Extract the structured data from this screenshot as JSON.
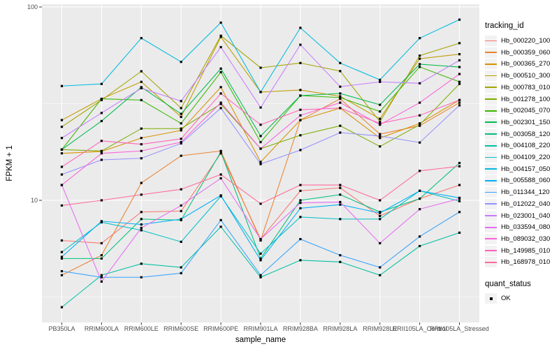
{
  "figure": {
    "legend_title": "tracking_id",
    "quant_status_title": "quant_status",
    "quant_status_item": "OK"
  },
  "chart_data": {
    "type": "line",
    "title": "",
    "xlabel": "sample_name",
    "ylabel": "FPKM + 1",
    "y_scale": "log10",
    "ylim": [
      2.3,
      102
    ],
    "y_ticks": [
      100,
      10
    ],
    "grid": true,
    "legend_position": "right",
    "marker": "black-square",
    "marker_legend": {
      "title": "quant_status",
      "items": [
        "OK"
      ]
    },
    "categories": [
      "PB350LA",
      "RRIM600LA",
      "RRIM600LE",
      "RRIM600SE",
      "RRIM600PE",
      "RRIM901LA",
      "RRIM928BA",
      "RRIM928LA",
      "RRIM928LE",
      "RRII105LA_Control",
      "RRII105LA_Stressed"
    ],
    "series": [
      {
        "name": "Hb_000220_100",
        "color": "#F8766D",
        "values": [
          6.2,
          6.0,
          8.7,
          8.8,
          17.5,
          6.3,
          11.2,
          11.6,
          8.3,
          10.2,
          12.0
        ]
      },
      {
        "name": "Hb_000359_060",
        "color": "#EA8331",
        "values": [
          4.1,
          5.2,
          12.3,
          17.0,
          18.0,
          6.2,
          26.0,
          33.5,
          22.0,
          24.3,
          32.0
        ]
      },
      {
        "name": "Hb_000365_270",
        "color": "#D89000",
        "values": [
          17.5,
          17.9,
          21.0,
          23.0,
          38.5,
          15.8,
          26.0,
          30.0,
          21.0,
          25.0,
          33.0
        ]
      },
      {
        "name": "Hb_000510_300",
        "color": "#C09B00",
        "values": [
          26.0,
          33.5,
          41.0,
          27.0,
          70.0,
          36.3,
          37.2,
          34.5,
          26.4,
          54.0,
          57.0
        ]
      },
      {
        "name": "Hb_000783_010",
        "color": "#A3A500",
        "values": [
          24.0,
          33.0,
          46.5,
          30.0,
          71.0,
          48.5,
          51.3,
          46.6,
          25.5,
          56.0,
          65.0
        ]
      },
      {
        "name": "Hb_001278_100",
        "color": "#7CAE00",
        "values": [
          18.3,
          18.0,
          23.5,
          23.5,
          31.5,
          18.5,
          21.7,
          24.3,
          19.0,
          24.6,
          40.0
        ]
      },
      {
        "name": "Hb_002045_070",
        "color": "#39B600",
        "values": [
          18.3,
          33.5,
          33.0,
          25.0,
          46.0,
          20.0,
          34.8,
          34.0,
          28.8,
          49.0,
          41.0
        ]
      },
      {
        "name": "Hb_002301_150",
        "color": "#00BB4E",
        "values": [
          18.3,
          25.7,
          38.5,
          28.0,
          48.0,
          21.5,
          34.8,
          35.7,
          31.2,
          50.6,
          48.9
        ]
      },
      {
        "name": "Hb_003058_120",
        "color": "#00BF7D",
        "values": [
          5.0,
          5.0,
          8.0,
          7.9,
          17.8,
          5.0,
          10.0,
          10.7,
          8.7,
          10.2,
          15.6
        ]
      },
      {
        "name": "Hb_004108_220",
        "color": "#00C1A3",
        "values": [
          2.8,
          4.1,
          4.7,
          4.5,
          7.3,
          4.0,
          4.9,
          4.8,
          4.1,
          5.8,
          6.8
        ]
      },
      {
        "name": "Hb_004109_220",
        "color": "#00BFC4",
        "values": [
          5.4,
          7.7,
          7.0,
          6.1,
          10.5,
          5.3,
          8.2,
          8.0,
          8.0,
          11.2,
          9.9
        ]
      },
      {
        "name": "Hb_004157_050",
        "color": "#00BAE0",
        "values": [
          39.0,
          40.0,
          69.0,
          52.0,
          83.0,
          36.3,
          78.0,
          51.3,
          42.0,
          69.0,
          86.0
        ]
      },
      {
        "name": "Hb_005588_060",
        "color": "#00B0F6",
        "values": [
          5.1,
          7.8,
          7.5,
          8.0,
          10.6,
          4.9,
          9.1,
          9.5,
          8.6,
          11.2,
          10.3
        ]
      },
      {
        "name": "Hb_011344_120",
        "color": "#35A2FF",
        "values": [
          4.3,
          4.0,
          4.0,
          4.2,
          7.9,
          4.1,
          6.3,
          5.2,
          4.5,
          6.5,
          8.7
        ]
      },
      {
        "name": "Hb_012022_040",
        "color": "#9590FF",
        "values": [
          13.6,
          16.2,
          16.5,
          19.7,
          30.0,
          15.4,
          18.2,
          22.4,
          21.5,
          19.9,
          31.0
        ]
      },
      {
        "name": "Hb_023001_040",
        "color": "#C77CFF",
        "values": [
          21.0,
          28.3,
          38.0,
          32.6,
          62.0,
          30.2,
          63.8,
          38.7,
          41.0,
          40.3,
          53.0
        ]
      },
      {
        "name": "Hb_033594_080",
        "color": "#E76BF3",
        "values": [
          12.0,
          3.8,
          7.2,
          9.4,
          13.0,
          6.3,
          9.7,
          9.8,
          6.0,
          9.0,
          10.2
        ]
      },
      {
        "name": "Hb_089032_030",
        "color": "#FA62DB",
        "values": [
          12.0,
          17.5,
          18.0,
          20.0,
          32.0,
          18.5,
          27.5,
          32.0,
          24.6,
          32.0,
          45.0
        ]
      },
      {
        "name": "Hb_149985_010",
        "color": "#FF62BC",
        "values": [
          14.9,
          20.3,
          19.5,
          20.8,
          35.7,
          24.6,
          29.4,
          30.0,
          25.0,
          27.5,
          33.0
        ]
      },
      {
        "name": "Hb_168978_010",
        "color": "#FF6A98",
        "values": [
          9.4,
          10.0,
          10.7,
          11.4,
          13.6,
          9.6,
          12.0,
          12.0,
          10.0,
          14.2,
          15.0
        ]
      }
    ],
    "colors": {
      "panel_bg": "#EBEBEB",
      "gridline": "#FFFFFF",
      "axis_text": "#4D4D4D",
      "tick_mark": "#333333",
      "point": "#000000"
    }
  }
}
